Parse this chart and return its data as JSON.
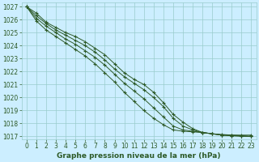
{
  "title": "Graphe pression niveau de la mer (hPa)",
  "background_color": "#cceeff",
  "grid_color": "#99cccc",
  "line_color": "#2d5a27",
  "xlim": [
    -0.5,
    23.5
  ],
  "ylim": [
    1016.8,
    1027.3
  ],
  "yticks": [
    1017,
    1018,
    1019,
    1020,
    1021,
    1022,
    1023,
    1024,
    1025,
    1026,
    1027
  ],
  "xticks": [
    0,
    1,
    2,
    3,
    4,
    5,
    6,
    7,
    8,
    9,
    10,
    11,
    12,
    13,
    14,
    15,
    16,
    17,
    18,
    19,
    20,
    21,
    22,
    23
  ],
  "lines": [
    [
      1027.0,
      1026.5,
      1025.8,
      1025.4,
      1025.0,
      1024.7,
      1024.3,
      1023.8,
      1023.3,
      1022.6,
      1021.9,
      1021.4,
      1021.0,
      1020.4,
      1019.6,
      1018.7,
      1018.1,
      1017.6,
      1017.3,
      1017.2,
      1017.15,
      1017.1,
      1017.1,
      1017.1
    ],
    [
      1027.0,
      1026.3,
      1025.7,
      1025.2,
      1024.8,
      1024.4,
      1024.0,
      1023.5,
      1022.9,
      1022.2,
      1021.6,
      1021.1,
      1020.6,
      1020.0,
      1019.3,
      1018.4,
      1017.8,
      1017.5,
      1017.3,
      1017.2,
      1017.1,
      1017.1,
      1017.05,
      1017.0
    ],
    [
      1027.0,
      1026.1,
      1025.5,
      1025.0,
      1024.5,
      1024.1,
      1023.6,
      1023.1,
      1022.5,
      1021.8,
      1021.1,
      1020.5,
      1019.9,
      1019.2,
      1018.5,
      1017.8,
      1017.5,
      1017.4,
      1017.3,
      1017.2,
      1017.1,
      1017.05,
      1017.05,
      1017.0
    ],
    [
      1027.0,
      1025.9,
      1025.2,
      1024.7,
      1024.2,
      1023.7,
      1023.2,
      1022.6,
      1021.9,
      1021.2,
      1020.4,
      1019.7,
      1019.0,
      1018.4,
      1017.9,
      1017.5,
      1017.4,
      1017.35,
      1017.3,
      1017.2,
      1017.1,
      1017.05,
      1017.0,
      1017.0
    ]
  ],
  "tick_fontsize": 5.5,
  "xlabel_fontsize": 6.5
}
